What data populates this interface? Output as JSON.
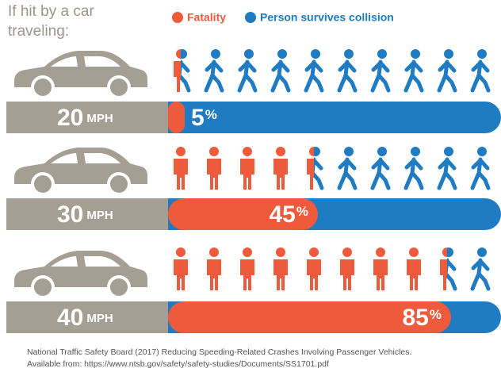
{
  "chart_data": {
    "type": "bar",
    "title": [
      "If hit by a car",
      "traveling:"
    ],
    "categories": [
      "20",
      "30",
      "40"
    ],
    "category_unit": "MPH",
    "value_unit": "%",
    "xlim": [
      0,
      100
    ],
    "series": [
      {
        "name": "Fatality",
        "color": "#ee5a3c",
        "values": [
          5,
          45,
          85
        ]
      },
      {
        "name": "Person survives collision",
        "color": "#1f7bc2"
      }
    ],
    "source": [
      "National Traffic Safety Board (2017) Reducing Speeding-Related Crashes Involving Passenger Vehicles.",
      "Available from: https://www.ntsb.gov/safety/safety-studies/Documents/SS1701.pdf"
    ]
  }
}
